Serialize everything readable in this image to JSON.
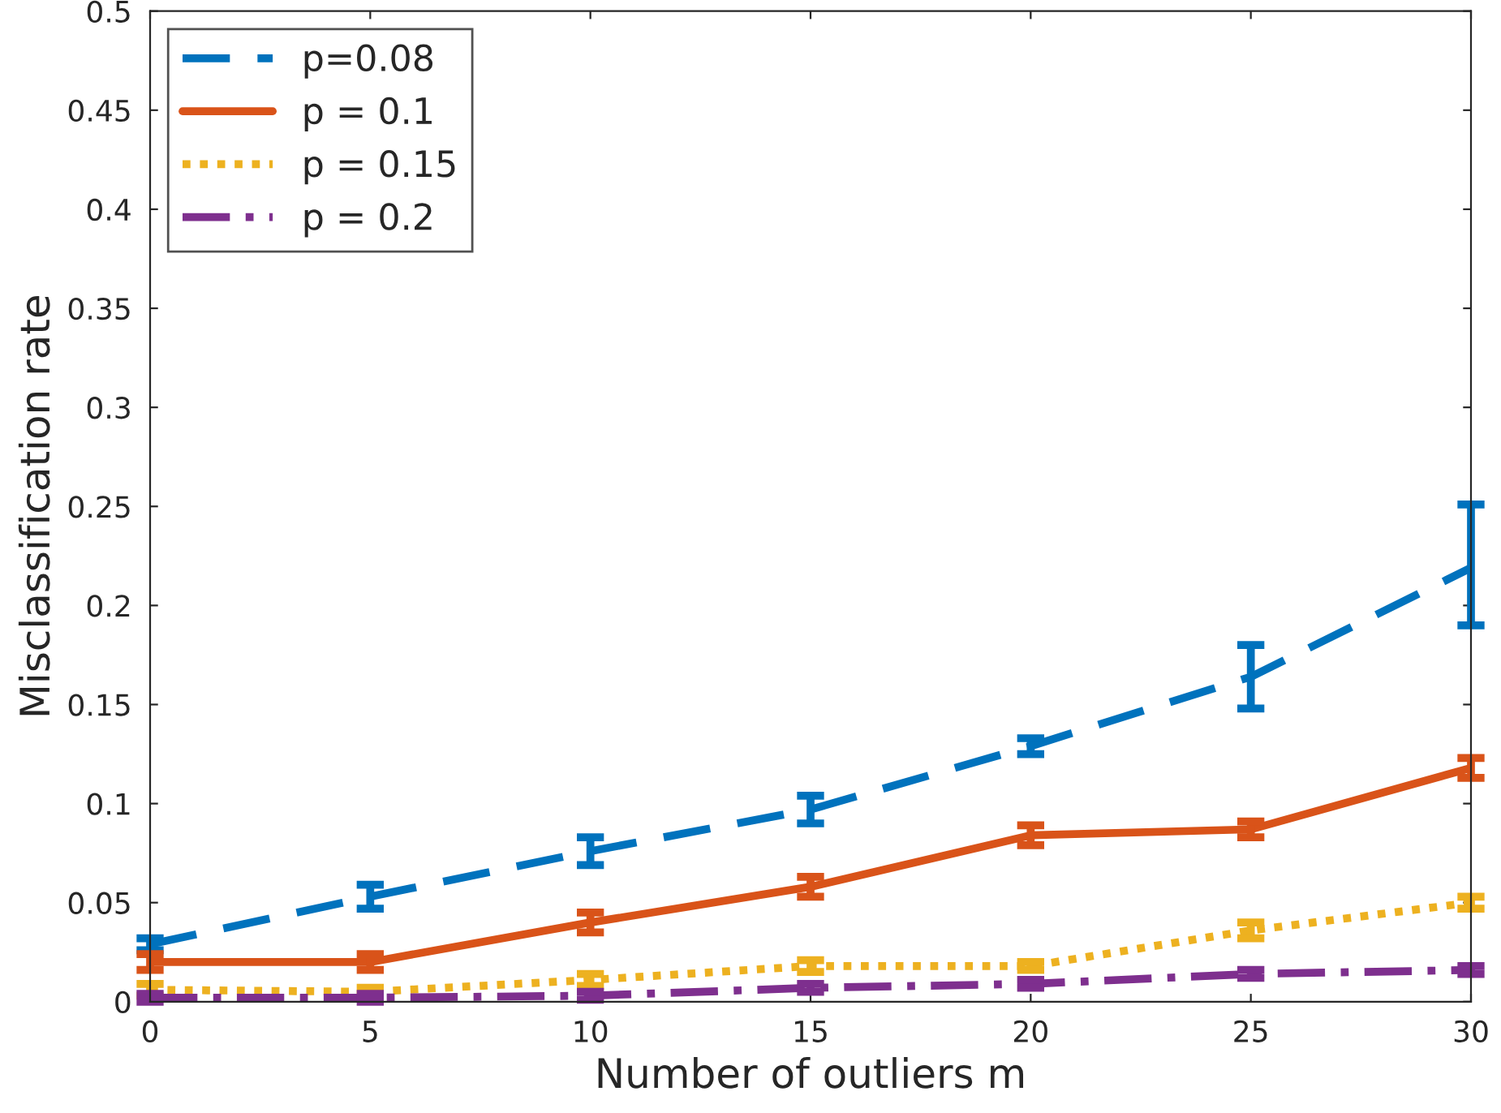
{
  "chart_data": {
    "type": "line",
    "xlabel": "Number of outliers m",
    "ylabel": "Misclassification rate",
    "x": [
      0,
      5,
      10,
      15,
      20,
      25,
      30
    ],
    "series": [
      {
        "name": "p=0.08",
        "color": "#0072bd",
        "line_style": "dashed",
        "values": [
          0.029,
          0.053,
          0.076,
          0.097,
          0.129,
          0.164,
          0.219
        ],
        "errors": [
          0.003,
          0.006,
          0.007,
          0.007,
          0.004,
          0.016,
          [
            0.19,
            0.251
          ]
        ]
      },
      {
        "name": "p = 0.1",
        "color": "#d95319",
        "line_style": "solid",
        "values": [
          0.02,
          0.02,
          0.04,
          0.058,
          0.084,
          0.087,
          0.118
        ],
        "errors": [
          0.004,
          0.004,
          0.005,
          0.005,
          0.005,
          0.004,
          0.005
        ]
      },
      {
        "name": "p = 0.15",
        "color": "#edb120",
        "line_style": "dotted",
        "values": [
          0.006,
          0.005,
          0.011,
          0.018,
          0.018,
          0.036,
          0.05
        ],
        "errors": [
          0.003,
          0.002,
          0.003,
          0.003,
          0.002,
          0.004,
          0.003
        ]
      },
      {
        "name": "p = 0.2",
        "color": "#7e2f8e",
        "line_style": "dashdot",
        "values": [
          0.002,
          0.002,
          0.003,
          0.007,
          0.009,
          0.014,
          0.016
        ],
        "errors": [
          0.002,
          0.002,
          0.002,
          0.002,
          0.002,
          0.002,
          0.002
        ]
      }
    ],
    "xlim": [
      0,
      30
    ],
    "xticks": [
      0,
      5,
      10,
      15,
      20,
      25,
      30
    ],
    "ylim": [
      0,
      0.5
    ],
    "yticks": [
      0,
      0.05,
      0.1,
      0.15,
      0.2,
      0.25,
      0.3,
      0.35,
      0.4,
      0.45,
      0.5
    ],
    "legend": "top left",
    "marker": "none",
    "grid": false
  }
}
